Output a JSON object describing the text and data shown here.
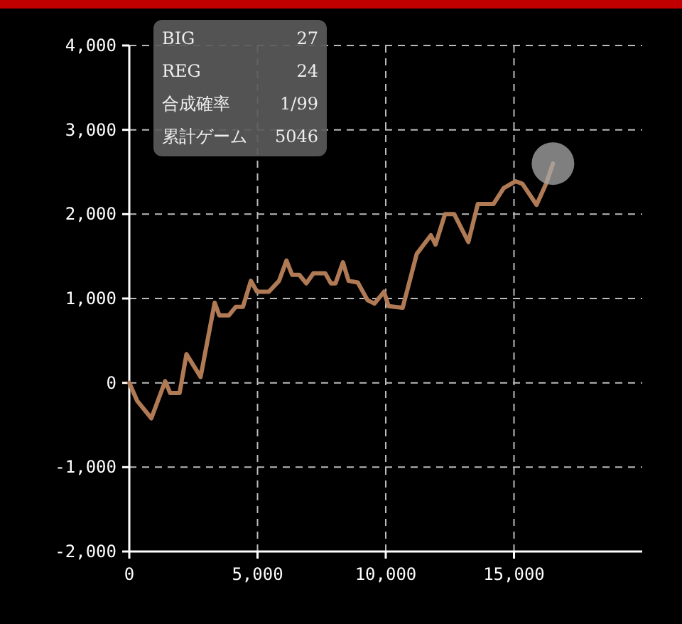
{
  "chart_data": {
    "type": "line",
    "x": [
      0,
      310,
      860,
      1400,
      1590,
      1960,
      2230,
      2780,
      3330,
      3510,
      3880,
      4150,
      4430,
      4740,
      4980,
      5440,
      5840,
      6130,
      6350,
      6630,
      6900,
      7180,
      7640,
      7860,
      8040,
      8330,
      8550,
      8910,
      9290,
      9560,
      9930,
      10110,
      10660,
      11210,
      11760,
      11940,
      12310,
      12670,
      13220,
      13590,
      14200,
      14600,
      15060,
      15330,
      15880,
      16250,
      16520
    ],
    "series": [
      {
        "color": "#b07a55",
        "values": [
          0,
          -215,
          -420,
          20,
          -120,
          -120,
          340,
          70,
          950,
          800,
          800,
          900,
          900,
          1210,
          1080,
          1080,
          1210,
          1450,
          1280,
          1280,
          1180,
          1300,
          1300,
          1180,
          1180,
          1430,
          1210,
          1190,
          980,
          940,
          1080,
          910,
          890,
          1530,
          1750,
          1640,
          2000,
          2000,
          1670,
          2120,
          2120,
          2310,
          2390,
          2360,
          2110,
          2360,
          2600
        ]
      }
    ],
    "xlim": [
      0,
      20000
    ],
    "ylim": [
      -2000,
      4000
    ],
    "xticks": [
      0,
      {
        "value": 5000,
        "label": "5,000"
      },
      {
        "value": 10000,
        "label": "10,000"
      },
      {
        "value": 15000,
        "label": "15,000"
      }
    ],
    "yticks": [
      {
        "value": -2000,
        "label": "-2,000"
      },
      {
        "value": -1000,
        "label": "-1,000"
      },
      0,
      {
        "value": 1000,
        "label": "1,000"
      },
      {
        "value": 2000,
        "label": "2,000"
      },
      {
        "value": 3000,
        "label": "3,000"
      },
      {
        "value": 4000,
        "label": "4,000"
      }
    ],
    "grid": true,
    "line_style": "solid",
    "annotations": [
      "BIG",
      "27",
      "REG",
      "24",
      "合成確率",
      "1/99",
      "累計ゲーム",
      "5046"
    ]
  }
}
